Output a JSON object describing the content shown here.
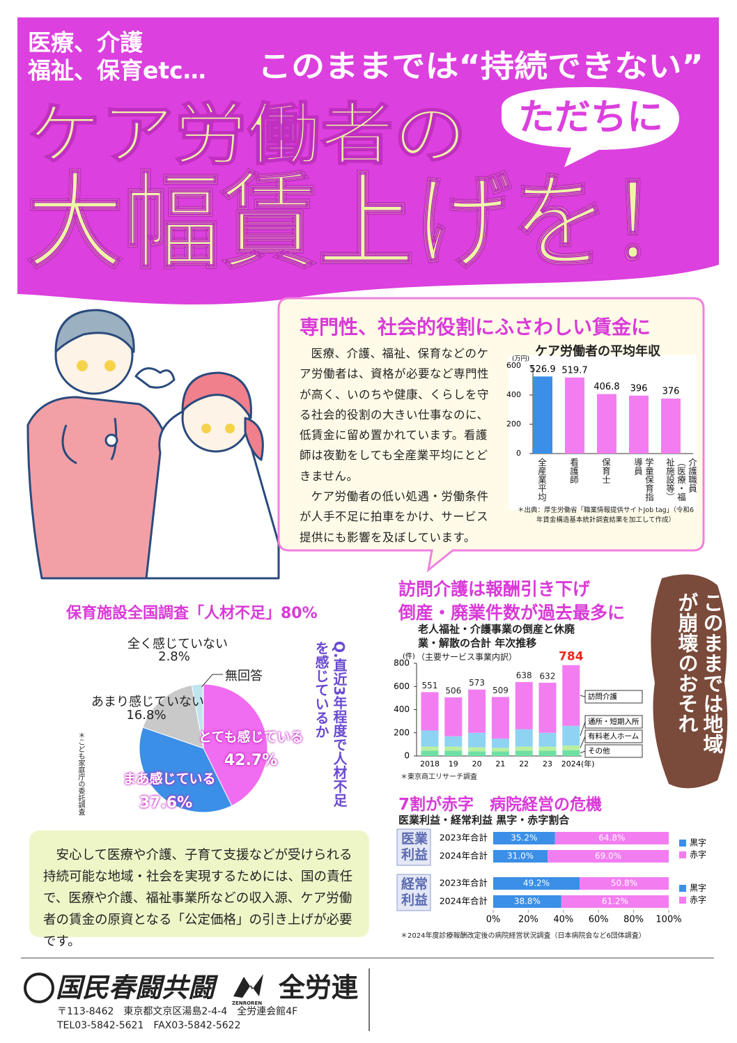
{
  "header": {
    "topics": [
      "医療、介護",
      "福祉、保育etc…"
    ],
    "tagline": "このままでは“持続できない”",
    "line1": "ケア労働者の",
    "badge": "ただちに",
    "line2": "大幅賃上げを！"
  },
  "wage_section": {
    "title": "専門性、社会的役割にふさわしい賃金に",
    "paragraphs": [
      "医療、介護、福祉、保育などのケア労働者は、資格が必要など専門性が高く、いのちや健康、くらしを守る社会的役割の大きい仕事なのに、低賃金に留め置かれています。看護師は夜勤をしても全産業平均にとどきません。",
      "ケア労働者の低い処遇・労働条件が人手不足に拍車をかけ、サービス提供にも影響を及ぼしています。"
    ]
  },
  "care_section": {
    "title_lines": [
      "訪問介護は報酬引き下げ",
      "倒産・廃業件数が過去最多に"
    ]
  },
  "warning": "このままでは地域が崩壊のおそれ",
  "hospital_section": {
    "title": "7割が赤字　病院経営の危機"
  },
  "conclusion": "安心して医療や介護、子育て支援などが受けられる持続可能な地域・社会を実現するためには、国の責任で、医療や介護、福祉事業所などの収入源、ケア労働者の賃金の原資となる「公定価格」の引き上げが必要です。",
  "footer": {
    "org1": "国民春闘共闘",
    "org2_roman": "ZENROREN",
    "org2": "全労連",
    "address": "〒113-8462　東京都文京区湯島2-4-4　全労連会館4F",
    "phone": "TEL03-5842-5621　FAX03-5842-5622"
  },
  "chart_data": [
    {
      "type": "bar",
      "title": "ケア労働者の平均年収",
      "ylabel": "(万円)",
      "categories": [
        "全産業平均",
        "看護師",
        "保育士",
        "学童保育指導員",
        "介護職員（医療・福祉施設等）"
      ],
      "values": [
        526.9,
        519.7,
        406.8,
        396,
        376
      ],
      "colors": [
        "#3b8fe6",
        "#f27df0",
        "#f27df0",
        "#f27df0",
        "#f27df0"
      ],
      "ylim": [
        0,
        600
      ],
      "yticks": [
        0,
        200,
        400,
        600
      ],
      "source": "＊出典：厚生労働省「職業情報提供サイトJob tag」（令和6年賃金構造基本統計調査結果を加工して作成）"
    },
    {
      "type": "pie",
      "title": "保育施設全国調査「人材不足」80%",
      "question": "Q.直近3年程度で人材不足を感じているか",
      "note": "＊こども家庭庁の委託調査",
      "categories": [
        "とても感じている",
        "まあ感じている",
        "あまり感じていない",
        "全く感じていない",
        "無回答"
      ],
      "values": [
        42.7,
        37.6,
        16.8,
        2.8,
        0.1
      ],
      "value_labels": [
        "42.7%",
        "37.6%",
        "16.8%",
        "2.8%",
        null
      ],
      "colors": [
        "#f06cf0",
        "#3b8fe6",
        "#c9c9c9",
        "#bfe6ee",
        "#e8f7f9"
      ]
    },
    {
      "type": "stacked_bar",
      "title": "老人福祉・介護事業の倒産と休廃業・解散の合計 年次推移",
      "subtitle": "（主要サービス事業内訳）",
      "ylabel": "(件)",
      "xlabel": "(年)",
      "categories": [
        "2018",
        "19",
        "20",
        "21",
        "22",
        "23",
        "2024"
      ],
      "series": [
        {
          "name": "その他",
          "color": "#6fe0a4",
          "values": [
            45,
            45,
            40,
            40,
            45,
            45,
            50
          ]
        },
        {
          "name": "有料老人ホーム",
          "color": "#b8f0a0",
          "values": [
            35,
            35,
            35,
            30,
            35,
            35,
            40
          ]
        },
        {
          "name": "通所・短期入所",
          "color": "#8fd3f2",
          "values": [
            140,
            90,
            125,
            80,
            150,
            120,
            170
          ]
        },
        {
          "name": "訪問介護",
          "color": "#f27df0",
          "values": [
            331,
            336,
            373,
            359,
            408,
            432,
            524
          ]
        }
      ],
      "totals": [
        551,
        506,
        573,
        509,
        638,
        632,
        784
      ],
      "total_colors": [
        "#222222",
        "#222222",
        "#222222",
        "#222222",
        "#222222",
        "#222222",
        "#e8261e"
      ],
      "ylim": [
        0,
        800
      ],
      "yticks": [
        0,
        200,
        400,
        600,
        800
      ],
      "source": "＊東京商工リサーチ調査"
    },
    {
      "type": "stacked_hbar",
      "title": "医業利益・経常利益 黒字・赤字割合",
      "groups": [
        {
          "name": "医業利益",
          "categories": [
            "2023年合計",
            "2024年合計"
          ],
          "series": [
            {
              "name": "黒字",
              "color": "#3b8fe6",
              "values": [
                35.2,
                31.0
              ],
              "value_labels": [
                "35.2%",
                "31.0%"
              ]
            },
            {
              "name": "赤字",
              "color": "#f27df0",
              "values": [
                64.8,
                69.0
              ],
              "value_labels": [
                "64.8%",
                "69.0%"
              ]
            }
          ]
        },
        {
          "name": "経常利益",
          "categories": [
            "2023年合計",
            "2024年合計"
          ],
          "series": [
            {
              "name": "黒字",
              "color": "#3b8fe6",
              "values": [
                49.2,
                38.8
              ],
              "value_labels": [
                "49.2%",
                "38.8%"
              ]
            },
            {
              "name": "赤字",
              "color": "#f27df0",
              "values": [
                50.8,
                61.2
              ],
              "value_labels": [
                "50.8%",
                "61.2%"
              ]
            }
          ]
        }
      ],
      "xlim": [
        0,
        100
      ],
      "xticks": [
        {
          "value": 0,
          "label": "0%"
        },
        {
          "value": 20,
          "label": "20%"
        },
        {
          "value": 40,
          "label": "40%"
        },
        {
          "value": 60,
          "label": "60%"
        },
        {
          "value": 80,
          "label": "80%"
        },
        {
          "value": 100,
          "label": "100%"
        }
      ],
      "source": "＊2024年度診療報酬改定後の病院経営状況調査（日本病院会など6団体調査）"
    }
  ]
}
